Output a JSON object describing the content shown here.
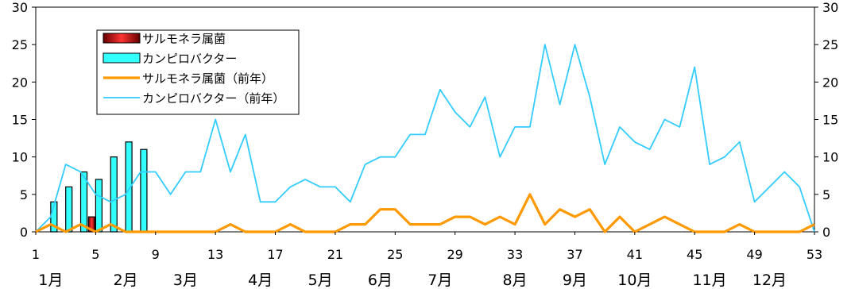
{
  "chart_data": {
    "type": "bar+line",
    "y_left": {
      "min": 0,
      "max": 30,
      "ticks": [
        0,
        5,
        10,
        15,
        20,
        25,
        30
      ]
    },
    "y_right": {
      "min": 0,
      "max": 30,
      "ticks": [
        0,
        5,
        10,
        15,
        20,
        25,
        30
      ]
    },
    "x": {
      "min": 1,
      "max": 53,
      "tick_labels": [
        "1",
        "5",
        "9",
        "13",
        "17",
        "21",
        "25",
        "29",
        "33",
        "37",
        "41",
        "45",
        "49",
        "53"
      ]
    },
    "months": [
      {
        "label": "1月",
        "week": 2
      },
      {
        "label": "2月",
        "week": 7
      },
      {
        "label": "3月",
        "week": 11
      },
      {
        "label": "4月",
        "week": 16
      },
      {
        "label": "5月",
        "week": 20
      },
      {
        "label": "6月",
        "week": 24
      },
      {
        "label": "7月",
        "week": 28
      },
      {
        "label": "8月",
        "week": 33
      },
      {
        "label": "9月",
        "week": 37
      },
      {
        "label": "10月",
        "week": 41
      },
      {
        "label": "11月",
        "week": 46
      },
      {
        "label": "12月",
        "week": 50
      }
    ],
    "bar_series": [
      {
        "name": "サルモネラ属菌",
        "color": "#cc0000",
        "weeks": [
          1,
          2,
          3,
          4,
          5,
          6,
          7,
          8,
          9
        ],
        "values": [
          0,
          0,
          0,
          0,
          2,
          0,
          0,
          0,
          0
        ]
      },
      {
        "name": "カンピロバクター",
        "color": "#33ffff",
        "weeks": [
          1,
          2,
          3,
          4,
          5,
          6,
          7,
          8,
          9
        ],
        "values": [
          0,
          4,
          6,
          8,
          7,
          10,
          12,
          11,
          0
        ]
      }
    ],
    "line_series": [
      {
        "name": "サルモネラ属菌（前年）",
        "color": "#ff9900",
        "values": [
          0,
          1,
          0,
          1,
          0,
          1,
          0,
          0,
          0,
          0,
          0,
          0,
          0,
          1,
          0,
          0,
          0,
          1,
          0,
          0,
          0,
          1,
          1,
          3,
          3,
          1,
          1,
          1,
          2,
          2,
          1,
          2,
          1,
          5,
          1,
          3,
          2,
          3,
          0,
          2,
          0,
          1,
          2,
          1,
          0,
          0,
          0,
          1,
          0,
          0,
          0,
          0,
          1
        ]
      },
      {
        "name": "カンピロバクター（前年）",
        "color": "#33ccff",
        "values": [
          0,
          2,
          9,
          8,
          5,
          4,
          5,
          8,
          8,
          5,
          8,
          8,
          15,
          8,
          13,
          4,
          4,
          6,
          7,
          6,
          6,
          4,
          9,
          10,
          10,
          13,
          13,
          19,
          16,
          14,
          18,
          10,
          14,
          14,
          25,
          17,
          25,
          18,
          9,
          14,
          12,
          11,
          15,
          14,
          22,
          9,
          10,
          12,
          4,
          6,
          8,
          6,
          0
        ]
      }
    ]
  }
}
